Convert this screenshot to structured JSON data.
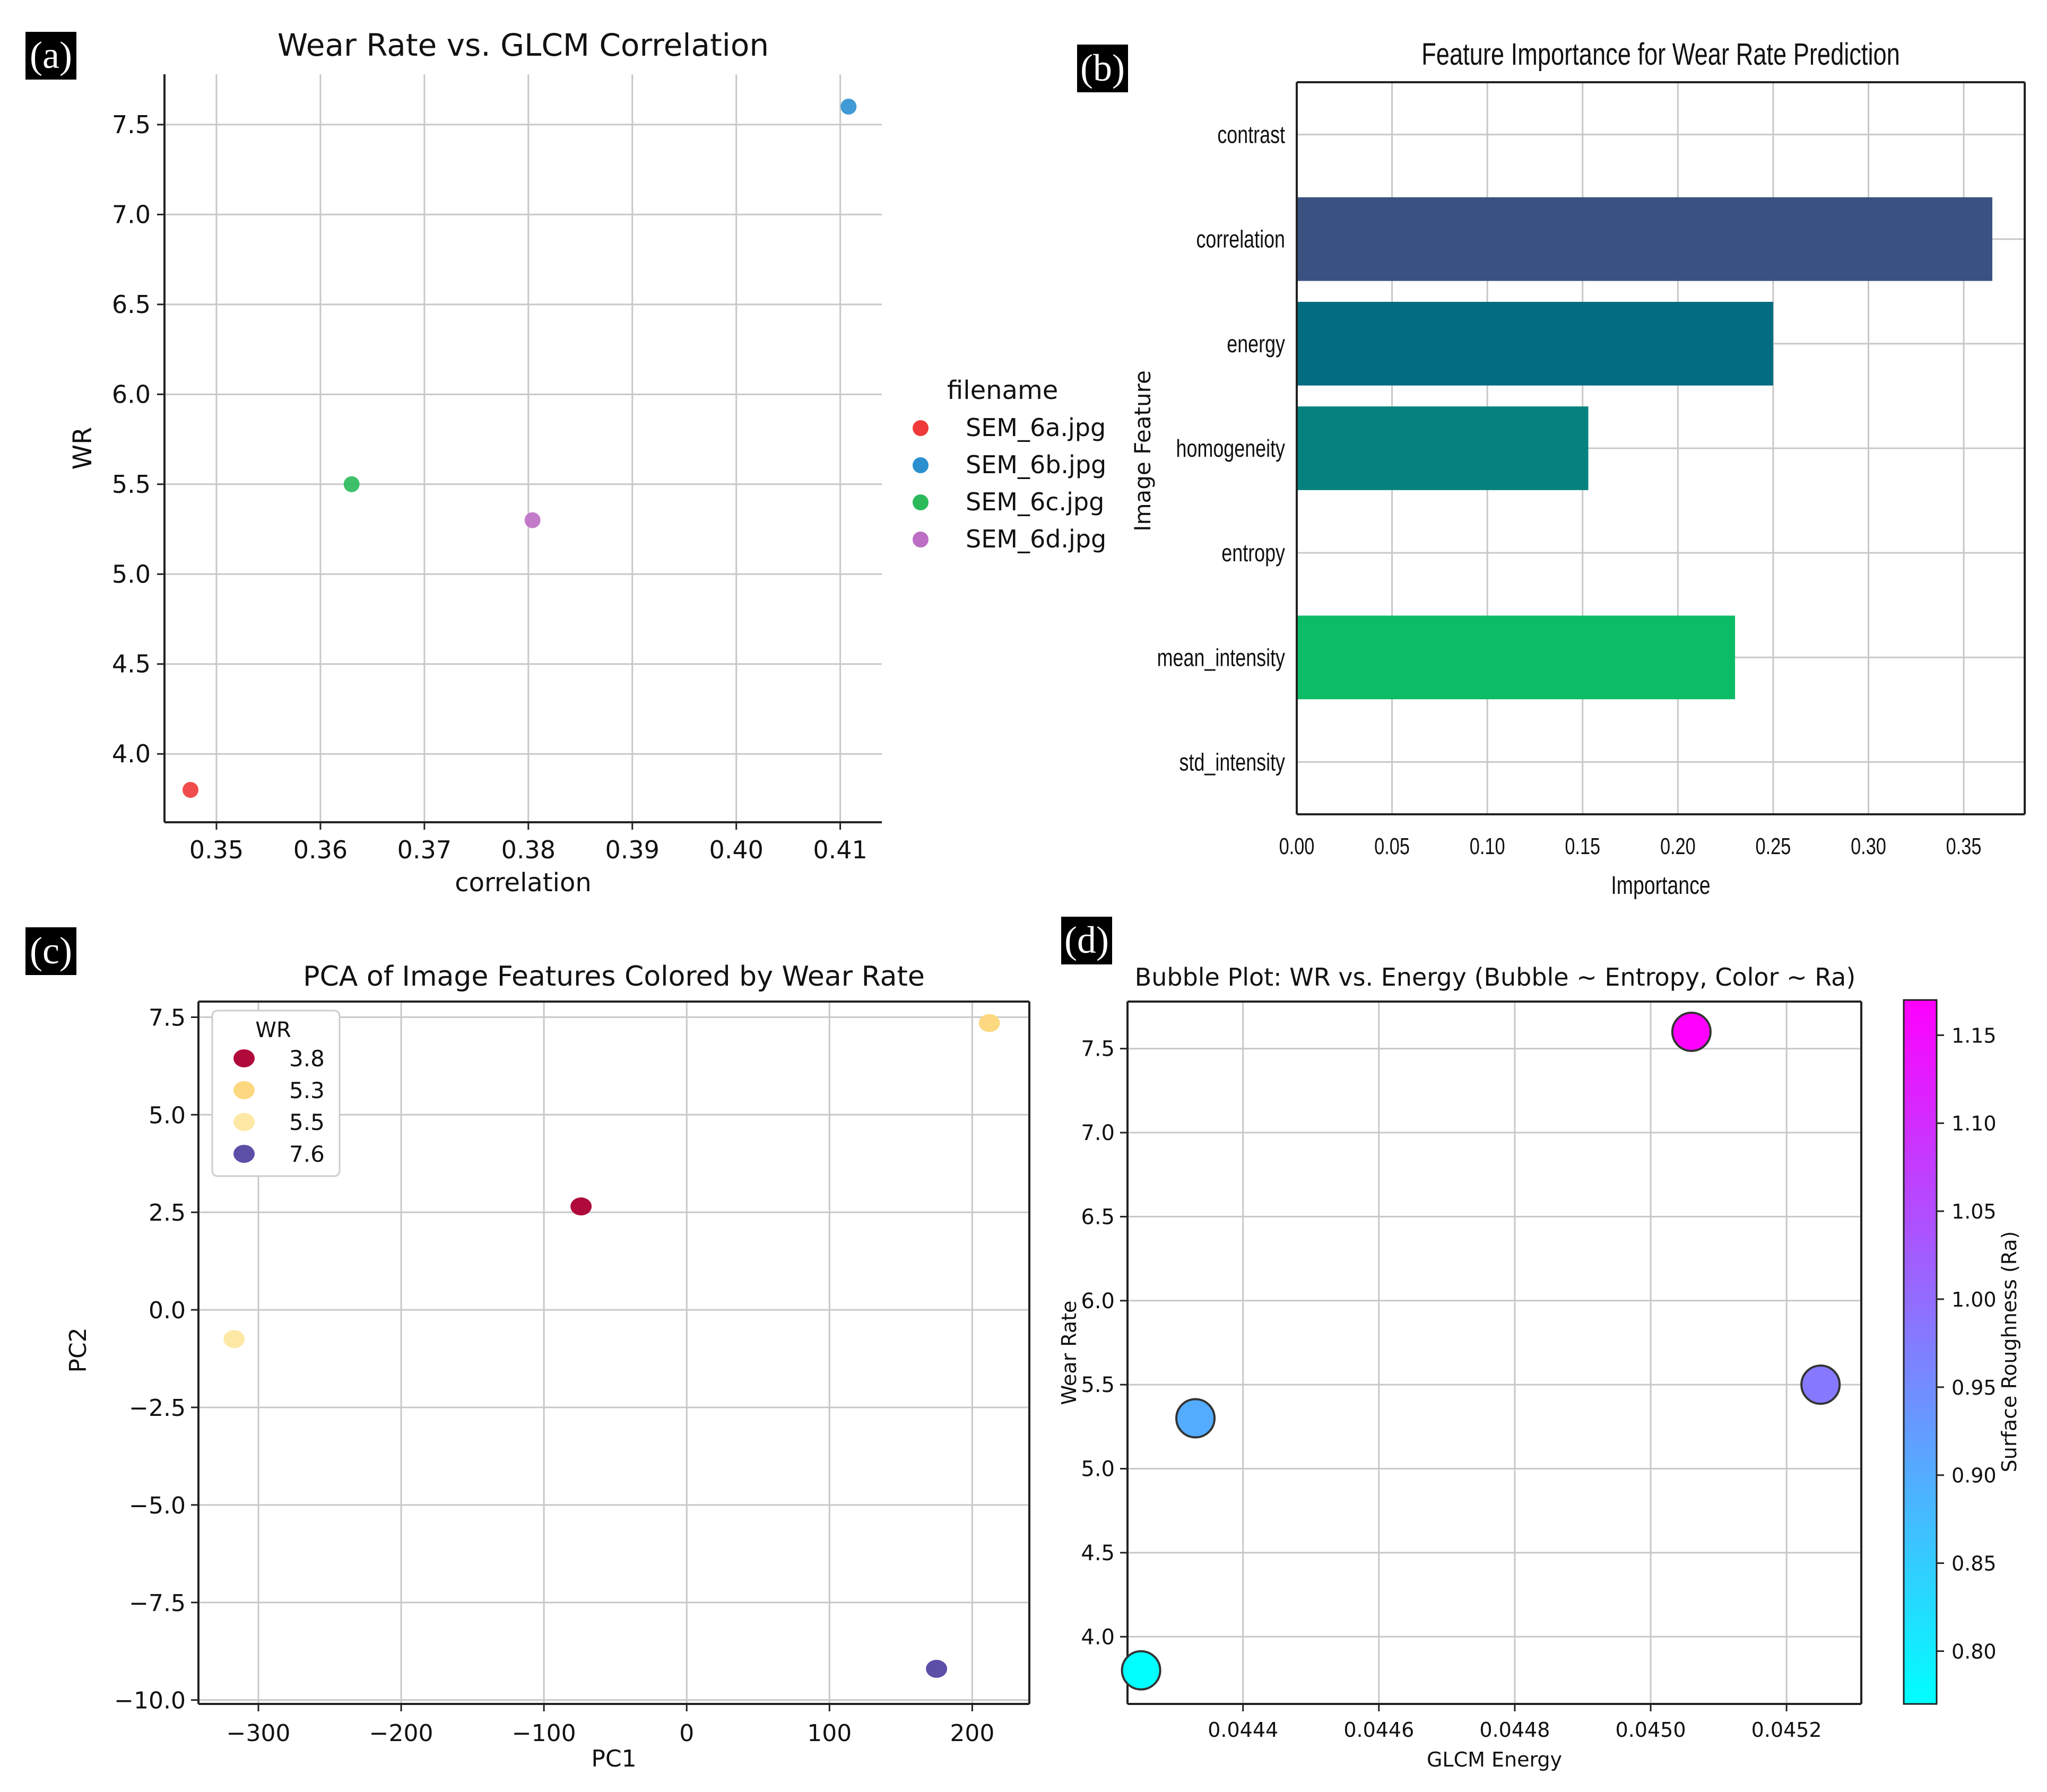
{
  "panel_labels": [
    "(a)",
    "(b)",
    "(c)",
    "(d)"
  ],
  "chart_data": [
    {
      "type": "scatter",
      "panel": "(a)",
      "title": "Wear Rate vs. GLCM Correlation",
      "xlabel": "correlation",
      "ylabel": "WR",
      "xlim": [
        0.345,
        0.414
      ],
      "ylim": [
        3.62,
        7.78
      ],
      "xticks": [
        0.35,
        0.36,
        0.37,
        0.38,
        0.39,
        0.4,
        0.41
      ],
      "xtick_labels": [
        "0.35",
        "0.36",
        "0.37",
        "0.38",
        "0.39",
        "0.40",
        "0.41"
      ],
      "yticks": [
        4.0,
        4.5,
        5.0,
        5.5,
        6.0,
        6.5,
        7.0,
        7.5
      ],
      "ytick_labels": [
        "4.0",
        "4.5",
        "5.0",
        "5.5",
        "6.0",
        "6.5",
        "7.0",
        "7.5"
      ],
      "grid": true,
      "legend_title": "filename",
      "legend_position": "outside-right",
      "series": [
        {
          "name": "SEM_6a.jpg",
          "color": "#f03a3a",
          "x": [
            0.3475
          ],
          "y": [
            3.8
          ]
        },
        {
          "name": "SEM_6b.jpg",
          "color": "#2b8fd0",
          "x": [
            0.4108
          ],
          "y": [
            7.6
          ]
        },
        {
          "name": "SEM_6c.jpg",
          "color": "#2aba5a",
          "x": [
            0.363
          ],
          "y": [
            5.5
          ]
        },
        {
          "name": "SEM_6d.jpg",
          "color": "#bb6ec4",
          "x": [
            0.3804
          ],
          "y": [
            5.3
          ]
        }
      ]
    },
    {
      "type": "bar",
      "orientation": "horizontal",
      "panel": "(b)",
      "title": "Feature Importance for Wear Rate Prediction",
      "xlabel": "Importance",
      "ylabel": "Image Feature",
      "xlim": [
        0.0,
        0.382
      ],
      "xticks": [
        0.0,
        0.05,
        0.1,
        0.15,
        0.2,
        0.25,
        0.3,
        0.35
      ],
      "xtick_labels": [
        "0.00",
        "0.05",
        "0.10",
        "0.15",
        "0.20",
        "0.25",
        "0.30",
        "0.35"
      ],
      "grid": true,
      "categories": [
        "contrast",
        "correlation",
        "energy",
        "homogeneity",
        "entropy",
        "mean_intensity",
        "std_intensity"
      ],
      "values": [
        0.0,
        0.365,
        0.25,
        0.153,
        0.0,
        0.23,
        0.0
      ],
      "colors": [
        "#3a4e86",
        "#3a5282",
        "#046c80",
        "#05827e",
        "#0a9c72",
        "#0dbc66",
        "#2ecc5e"
      ]
    },
    {
      "type": "scatter",
      "panel": "(c)",
      "title": "PCA of Image Features Colored by Wear Rate",
      "xlabel": "PC1",
      "ylabel": "PC2",
      "xlim": [
        -342,
        240
      ],
      "ylim": [
        -10.1,
        7.9
      ],
      "xticks": [
        -300,
        -200,
        -100,
        0,
        100,
        200
      ],
      "xtick_labels": [
        "−300",
        "−200",
        "−100",
        "0",
        "100",
        "200"
      ],
      "yticks": [
        -10.0,
        -7.5,
        -5.0,
        -2.5,
        0.0,
        2.5,
        5.0,
        7.5
      ],
      "ytick_labels": [
        "−10.0",
        "−7.5",
        "−5.0",
        "−2.5",
        "0.0",
        "2.5",
        "5.0",
        "7.5"
      ],
      "grid": true,
      "legend_title": "WR",
      "legend_position": "top-left",
      "series": [
        {
          "name": "3.8",
          "color": "#b00a3c",
          "x": [
            -74
          ],
          "y": [
            2.65
          ]
        },
        {
          "name": "5.3",
          "color": "#fcd880",
          "x": [
            212
          ],
          "y": [
            7.35
          ]
        },
        {
          "name": "5.5",
          "color": "#fde9a5",
          "x": [
            -317
          ],
          "y": [
            -0.75
          ]
        },
        {
          "name": "7.6",
          "color": "#5c4fa8",
          "x": [
            175
          ],
          "y": [
            -9.2
          ]
        }
      ]
    },
    {
      "type": "scatter",
      "subtype": "bubble",
      "panel": "(d)",
      "title": "Bubble Plot: WR vs. Energy (Bubble ~ Entropy, Color ~ Ra)",
      "xlabel": "GLCM Energy",
      "ylabel": "Wear Rate",
      "xlim": [
        0.04423,
        0.04531
      ],
      "ylim": [
        3.6,
        7.78
      ],
      "xticks": [
        0.0444,
        0.0446,
        0.0448,
        0.045,
        0.0452
      ],
      "xtick_labels": [
        "0.0444",
        "0.0446",
        "0.0448",
        "0.0450",
        "0.0452"
      ],
      "yticks": [
        4.0,
        4.5,
        5.0,
        5.5,
        6.0,
        6.5,
        7.0,
        7.5
      ],
      "ytick_labels": [
        "4.0",
        "4.5",
        "5.0",
        "5.5",
        "6.0",
        "6.5",
        "7.0",
        "7.5"
      ],
      "grid": true,
      "colorbar": {
        "label": "Surface Roughness (Ra)",
        "range": [
          0.77,
          1.17
        ],
        "ticks": [
          0.8,
          0.85,
          0.9,
          0.95,
          1.0,
          1.05,
          1.1,
          1.15
        ],
        "tick_labels": [
          "0.80",
          "0.85",
          "0.90",
          "0.95",
          "1.00",
          "1.05",
          "1.10",
          "1.15"
        ],
        "colors": [
          "#00ffff",
          "#ff00ff"
        ]
      },
      "points": [
        {
          "x": 0.04425,
          "y": 3.8,
          "ra": 0.77
        },
        {
          "x": 0.04433,
          "y": 5.3,
          "ra": 0.9
        },
        {
          "x": 0.04506,
          "y": 7.6,
          "ra": 1.17
        },
        {
          "x": 0.04525,
          "y": 5.5,
          "ra": 0.98
        }
      ]
    }
  ]
}
